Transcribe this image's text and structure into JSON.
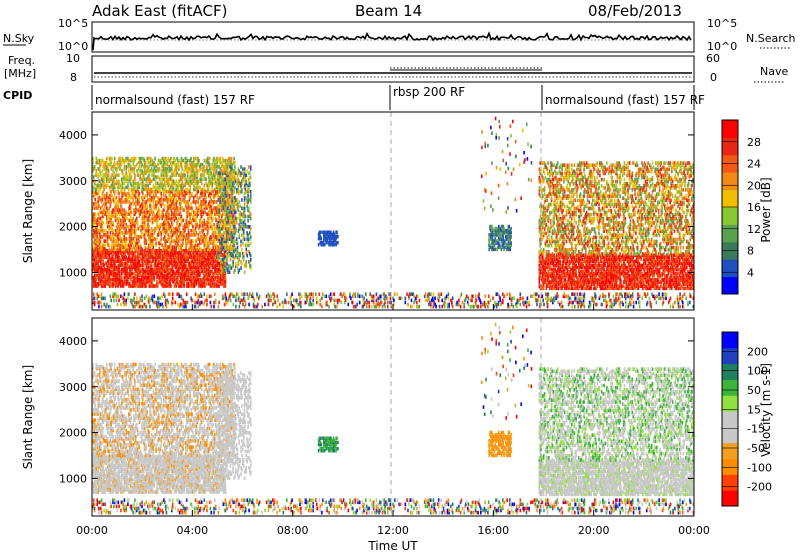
{
  "header": {
    "title": "Adak East (fitACF)",
    "beam": "Beam 14",
    "date": "08/Feb/2013"
  },
  "top_panels": {
    "nsky_label": "N.Sky",
    "nsky_ticks": [
      "10^5",
      "10^0"
    ],
    "nsearch_label": "N.Search",
    "nsearch_ticks": [
      "10^5",
      "10^0"
    ],
    "freq_label_1": "Freq.",
    "freq_label_2": "[MHz]",
    "freq_ticks": [
      "10",
      "8"
    ],
    "nave_label": "Nave",
    "nave_ticks": [
      "60",
      "0"
    ],
    "cpid_label": "CPID",
    "cpid_segments": [
      "normalsound (fast) 157 RF",
      "rbsp 200 RF",
      "normalsound (fast) 157 RF"
    ]
  },
  "colors": {
    "power": [
      "#0000ff",
      "#2050c0",
      "#3a7a5a",
      "#5aa050",
      "#8ac832",
      "#f0c000",
      "#f08c14",
      "#f05a14",
      "#e62814",
      "#ff0000"
    ],
    "velocity": [
      "#ff0000",
      "#ff4000",
      "#ff8c00",
      "#f0a020",
      "#c8c8c8",
      "#c8c8c8",
      "#90e040",
      "#3cb43c",
      "#208060",
      "#2040c0",
      "#0000ff"
    ]
  },
  "chart_data": [
    {
      "type": "heatmap",
      "title": "Power",
      "xlabel": "Time UT",
      "ylabel": "Slant Range [km]",
      "x_ticks": [
        "00:00",
        "04:00",
        "08:00",
        "12:00",
        "16:00",
        "20:00",
        "00:00"
      ],
      "x_range_hours": [
        0,
        24
      ],
      "y_ticks": [
        1000,
        2000,
        3000,
        4000
      ],
      "ylim": [
        180,
        4500
      ],
      "colorbar_label": "Power [dB]",
      "colorbar_ticks": [
        "28",
        "24",
        "20",
        "16",
        "12",
        "8",
        "4"
      ],
      "colorbar_range": [
        0,
        32
      ]
    },
    {
      "type": "heatmap",
      "title": "Velocity",
      "xlabel": "Time UT",
      "ylabel": "Slant Range [km]",
      "x_ticks": [
        "00:00",
        "04:00",
        "08:00",
        "12:00",
        "16:00",
        "20:00",
        "00:00"
      ],
      "x_range_hours": [
        0,
        24
      ],
      "y_ticks": [
        1000,
        2000,
        3000,
        4000
      ],
      "ylim": [
        180,
        4500
      ],
      "colorbar_label": "Velocity [m s-1]",
      "colorbar_ticks": [
        "200",
        "100",
        "50",
        "15",
        "-15",
        "-50",
        "-100",
        "-200"
      ]
    }
  ]
}
